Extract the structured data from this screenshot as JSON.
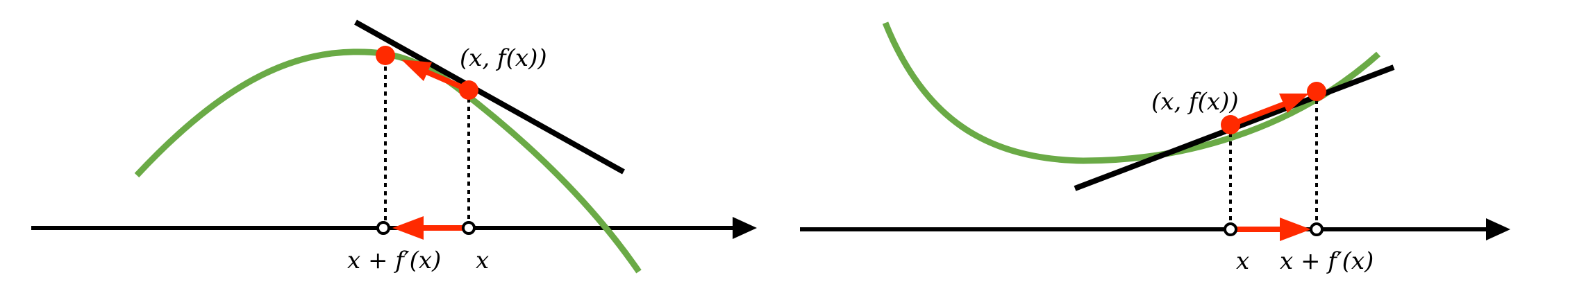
{
  "colors": {
    "curve": "#6aaa46",
    "tangent": "#000000",
    "arrow": "#ff2a00",
    "axis": "#000000"
  },
  "panels": [
    {
      "id": "left",
      "point_label": "(x, f(x))",
      "x_label": "x",
      "step_label": "x + f′(x)",
      "step_direction": "left"
    },
    {
      "id": "right",
      "point_label": "(x, f(x))",
      "x_label": "x",
      "step_label": "x + f′(x)",
      "step_direction": "right"
    }
  ]
}
